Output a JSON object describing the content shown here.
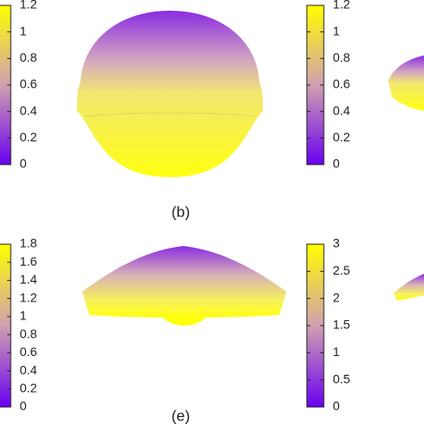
{
  "colorbars": [
    {
      "lim": [
        0,
        1.2
      ],
      "ticks": [
        0,
        0.2,
        0.4,
        0.6,
        0.8,
        1,
        1.2
      ]
    },
    {
      "lim": [
        0,
        1.2
      ],
      "ticks": [
        0,
        0.2,
        0.4,
        0.6,
        0.8,
        1,
        1.2
      ]
    },
    {
      "lim": [
        0,
        1.8
      ],
      "ticks": [
        0,
        0.2,
        0.4,
        0.6,
        0.8,
        1,
        1.2,
        1.4,
        1.6,
        1.8
      ]
    },
    {
      "lim": [
        0,
        3
      ],
      "ticks": [
        0,
        0.5,
        1,
        1.5,
        2,
        2.5,
        3
      ]
    }
  ],
  "captions": [
    "(b)",
    "(e)"
  ]
}
